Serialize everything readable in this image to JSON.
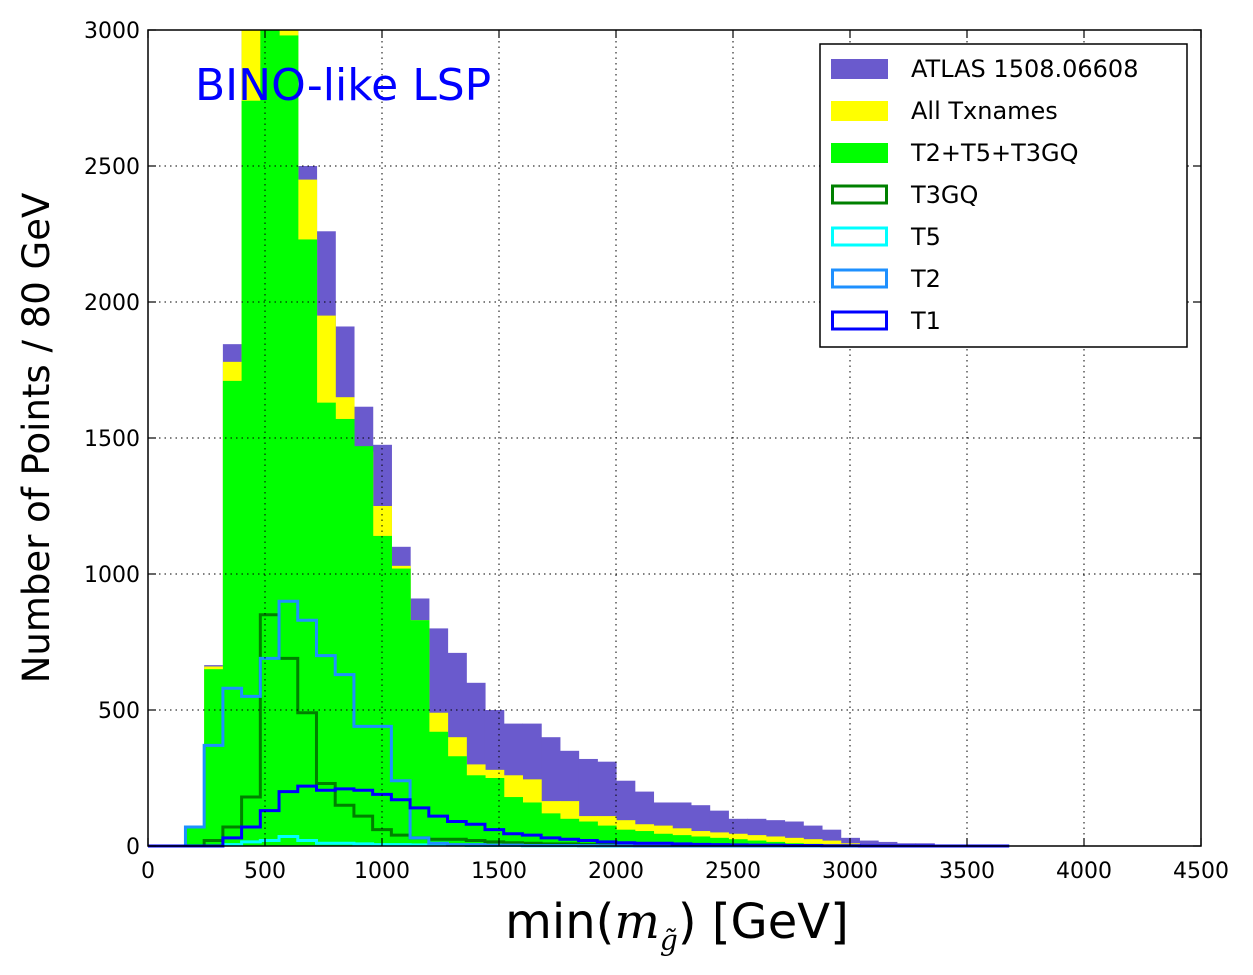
{
  "chart_data": {
    "type": "histogram",
    "bin_width": 80,
    "bin_edges_start": 0,
    "xlabel": "min(",
    "xlabel_math": "m",
    "xlabel_sub": "g̃",
    "xlabel_unit": ") [GeV]",
    "ylabel": "Number of Points / 80 GeV",
    "xlim": [
      0,
      4500
    ],
    "ylim": [
      0,
      3000
    ],
    "xticks": [
      0,
      500,
      1000,
      1500,
      2000,
      2500,
      3000,
      3500,
      4000,
      4500
    ],
    "yticks": [
      0,
      500,
      1000,
      1500,
      2000,
      2500,
      3000
    ],
    "grid": true,
    "legend_position": "top-right",
    "annotation": {
      "text": "BINO-like LSP",
      "color": "#0000ff"
    },
    "series": [
      {
        "name": "ATLAS 1508.06608",
        "style": "filled",
        "color": "#6a5acd",
        "values": [
          0,
          0,
          75,
          665,
          1845,
          3000,
          3000,
          3000,
          2500,
          2260,
          1910,
          1615,
          1475,
          1100,
          910,
          800,
          710,
          600,
          500,
          450,
          450,
          400,
          350,
          320,
          310,
          240,
          200,
          160,
          160,
          150,
          130,
          100,
          100,
          95,
          90,
          75,
          60,
          30,
          20,
          15,
          10,
          10,
          5,
          5,
          0,
          0
        ]
      },
      {
        "name": "All Txnames",
        "style": "filled",
        "color": "#ffff00",
        "values": [
          0,
          0,
          75,
          660,
          1780,
          3000,
          3000,
          3000,
          2450,
          1950,
          1650,
          1450,
          1250,
          1030,
          830,
          490,
          400,
          300,
          280,
          260,
          245,
          165,
          165,
          110,
          110,
          95,
          80,
          75,
          65,
          55,
          50,
          45,
          40,
          35,
          30,
          25,
          20,
          10,
          5,
          5,
          0,
          0,
          0,
          0,
          0,
          0
        ]
      },
      {
        "name": "T2+T5+T3GQ",
        "style": "filled",
        "color": "#00ff00",
        "values": [
          0,
          0,
          75,
          650,
          1710,
          2740,
          3000,
          2980,
          2230,
          1630,
          1570,
          1470,
          1140,
          1020,
          830,
          420,
          330,
          260,
          250,
          180,
          160,
          120,
          100,
          90,
          75,
          60,
          55,
          45,
          40,
          35,
          30,
          25,
          20,
          15,
          10,
          8,
          5,
          3,
          0,
          0,
          0,
          0,
          0,
          0,
          0,
          0
        ]
      },
      {
        "name": "T3GQ",
        "style": "step",
        "color": "#008000",
        "values": [
          0,
          0,
          0,
          20,
          70,
          180,
          850,
          690,
          490,
          230,
          150,
          110,
          60,
          40,
          30,
          25,
          25,
          20,
          15,
          12,
          10,
          8,
          8,
          6,
          5,
          5,
          4,
          3,
          2,
          2,
          2,
          1,
          1,
          1,
          0,
          0,
          0,
          0,
          0,
          0,
          0,
          0,
          0,
          0,
          0,
          0
        ]
      },
      {
        "name": "T5",
        "style": "step",
        "color": "#00ffff",
        "values": [
          0,
          0,
          0,
          0,
          5,
          15,
          20,
          35,
          20,
          10,
          10,
          8,
          5,
          5,
          4,
          4,
          3,
          2,
          2,
          2,
          1,
          1,
          1,
          1,
          0,
          0,
          0,
          0,
          0,
          0,
          0,
          0,
          0,
          0,
          0,
          0,
          0,
          0,
          0,
          0,
          0,
          0,
          0,
          0,
          0,
          0
        ]
      },
      {
        "name": "T2",
        "style": "step",
        "color": "#1e90ff",
        "values": [
          0,
          0,
          70,
          370,
          580,
          550,
          690,
          900,
          830,
          700,
          630,
          440,
          440,
          240,
          30,
          10,
          5,
          5,
          3,
          3,
          2,
          2,
          2,
          1,
          1,
          1,
          0,
          0,
          0,
          0,
          0,
          0,
          0,
          0,
          0,
          0,
          0,
          0,
          0,
          0,
          0,
          0,
          0,
          0,
          0,
          0
        ]
      },
      {
        "name": "T1",
        "style": "step",
        "color": "#0000ff",
        "values": [
          0,
          0,
          0,
          0,
          30,
          70,
          130,
          200,
          220,
          205,
          210,
          205,
          190,
          170,
          140,
          110,
          90,
          80,
          60,
          45,
          40,
          30,
          25,
          20,
          15,
          12,
          10,
          10,
          8,
          6,
          5,
          4,
          3,
          3,
          2,
          2,
          1,
          1,
          0,
          0,
          0,
          0,
          0,
          0,
          0,
          0
        ]
      }
    ]
  }
}
